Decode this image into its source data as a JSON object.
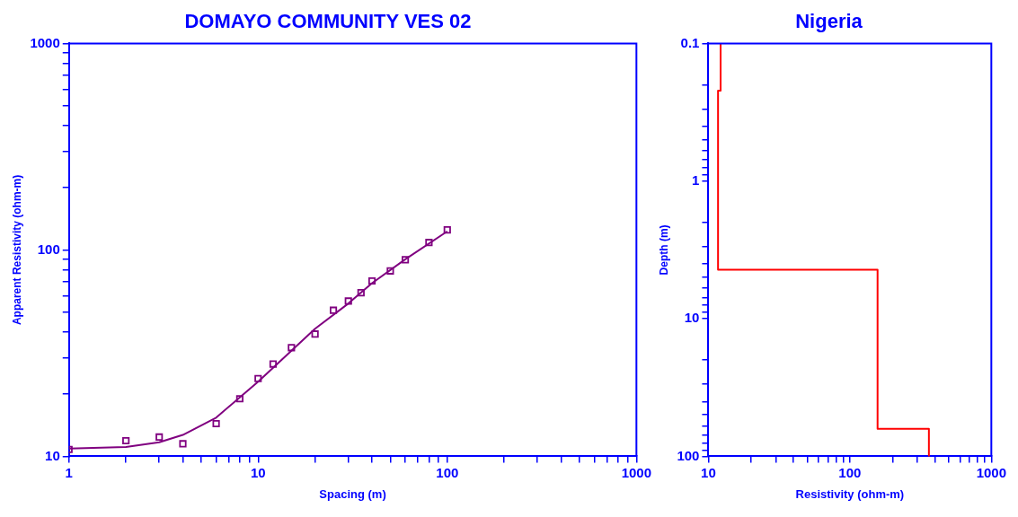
{
  "chart_data": [
    {
      "type": "line",
      "title": "DOMAYO COMMUNITY VES 02",
      "xlabel": "Spacing (m)",
      "ylabel": "Apparent Resistivity (ohm-m)",
      "log": "xy",
      "xlim": [
        1,
        1000
      ],
      "ylim": [
        10,
        1000
      ],
      "xticks": [
        1,
        {
          "value": 2,
          "label": null
        },
        {
          "value": 3,
          "label": null
        },
        {
          "value": 4,
          "label": null
        },
        {
          "value": 5,
          "label": null
        },
        {
          "value": 6,
          "label": null
        },
        {
          "value": 7,
          "label": null
        },
        {
          "value": 8,
          "label": null
        },
        {
          "value": 9,
          "label": null
        },
        10,
        {
          "value": 20,
          "label": null
        },
        {
          "value": 30,
          "label": null
        },
        {
          "value": 40,
          "label": null
        },
        {
          "value": 50,
          "label": null
        },
        {
          "value": 60,
          "label": null
        },
        {
          "value": 70,
          "label": null
        },
        {
          "value": 80,
          "label": null
        },
        {
          "value": 90,
          "label": null
        },
        100,
        {
          "value": 200,
          "label": null
        },
        {
          "value": 300,
          "label": null
        },
        {
          "value": 400,
          "label": null
        },
        {
          "value": 500,
          "label": null
        },
        {
          "value": 600,
          "label": null
        },
        {
          "value": 700,
          "label": null
        },
        {
          "value": 800,
          "label": null
        },
        {
          "value": 900,
          "label": null
        },
        1000
      ],
      "yticks": [
        10,
        {
          "value": 20,
          "label": null
        },
        {
          "value": 30,
          "label": null
        },
        {
          "value": 40,
          "label": null
        },
        {
          "value": 50,
          "label": null
        },
        {
          "value": 60,
          "label": null
        },
        {
          "value": 70,
          "label": null
        },
        {
          "value": 80,
          "label": null
        },
        {
          "value": 90,
          "label": null
        },
        100,
        {
          "value": 200,
          "label": null
        },
        {
          "value": 300,
          "label": null
        },
        {
          "value": 400,
          "label": null
        },
        {
          "value": 500,
          "label": null
        },
        {
          "value": 600,
          "label": null
        },
        {
          "value": 700,
          "label": null
        },
        {
          "value": 800,
          "label": null
        },
        {
          "value": 900,
          "label": null
        },
        1000
      ],
      "series": [
        {
          "type": "scatter",
          "marker": "square",
          "color": "#800080",
          "x": [
            1,
            2,
            3,
            4,
            6,
            8,
            10,
            12,
            15,
            20,
            25,
            30,
            35,
            40,
            50,
            60,
            80,
            100
          ],
          "values": [
            10.8,
            11.9,
            12.4,
            11.5,
            14.4,
            19,
            23.8,
            28,
            33.6,
            39.1,
            51,
            56.5,
            62,
            70.7,
            79.1,
            89.6,
            108.6,
            125
          ]
        },
        {
          "type": "line",
          "color": "#800080",
          "x": [
            1,
            2,
            3,
            4,
            6,
            8,
            10,
            15,
            20,
            30,
            40,
            60,
            100
          ],
          "values": [
            10.9,
            11.1,
            11.7,
            12.7,
            15.4,
            19.3,
            23,
            32.5,
            41.5,
            55,
            69,
            90,
            123
          ]
        }
      ]
    },
    {
      "type": "line",
      "title": "Nigeria",
      "xlabel": "Resistivity (ohm-m)",
      "ylabel": "Depth (m)",
      "log": "xy",
      "xlim": [
        10,
        1000
      ],
      "ylim": [
        100,
        0.1
      ],
      "xticks": [
        10,
        {
          "value": 20,
          "label": null
        },
        {
          "value": 30,
          "label": null
        },
        {
          "value": 40,
          "label": null
        },
        {
          "value": 50,
          "label": null
        },
        {
          "value": 60,
          "label": null
        },
        {
          "value": 70,
          "label": null
        },
        {
          "value": 80,
          "label": null
        },
        {
          "value": 90,
          "label": null
        },
        100,
        {
          "value": 200,
          "label": null
        },
        {
          "value": 300,
          "label": null
        },
        {
          "value": 400,
          "label": null
        },
        {
          "value": 500,
          "label": null
        },
        {
          "value": 600,
          "label": null
        },
        {
          "value": 700,
          "label": null
        },
        {
          "value": 800,
          "label": null
        },
        {
          "value": 900,
          "label": null
        },
        1000
      ],
      "yticks": [
        0.1,
        {
          "value": 0.2,
          "label": null
        },
        {
          "value": 0.3,
          "label": null
        },
        {
          "value": 0.4,
          "label": null
        },
        {
          "value": 0.5,
          "label": null
        },
        {
          "value": 0.6,
          "label": null
        },
        {
          "value": 0.7,
          "label": null
        },
        {
          "value": 0.8,
          "label": null
        },
        {
          "value": 0.9,
          "label": null
        },
        1,
        {
          "value": 2,
          "label": null
        },
        {
          "value": 3,
          "label": null
        },
        {
          "value": 4,
          "label": null
        },
        {
          "value": 5,
          "label": null
        },
        {
          "value": 6,
          "label": null
        },
        {
          "value": 7,
          "label": null
        },
        {
          "value": 8,
          "label": null
        },
        {
          "value": 9,
          "label": null
        },
        10,
        {
          "value": 20,
          "label": null
        },
        {
          "value": 30,
          "label": null
        },
        {
          "value": 40,
          "label": null
        },
        {
          "value": 50,
          "label": null
        },
        {
          "value": 60,
          "label": null
        },
        {
          "value": 70,
          "label": null
        },
        {
          "value": 80,
          "label": null
        },
        {
          "value": 90,
          "label": null
        },
        100
      ],
      "series": [
        {
          "type": "line",
          "color": "#ff0000",
          "x": [
            12.2,
            12.2,
            11.7,
            11.7,
            157,
            157,
            362,
            362
          ],
          "values": [
            0.1,
            0.22,
            0.22,
            4.4,
            4.4,
            63,
            63,
            100
          ]
        }
      ]
    }
  ]
}
